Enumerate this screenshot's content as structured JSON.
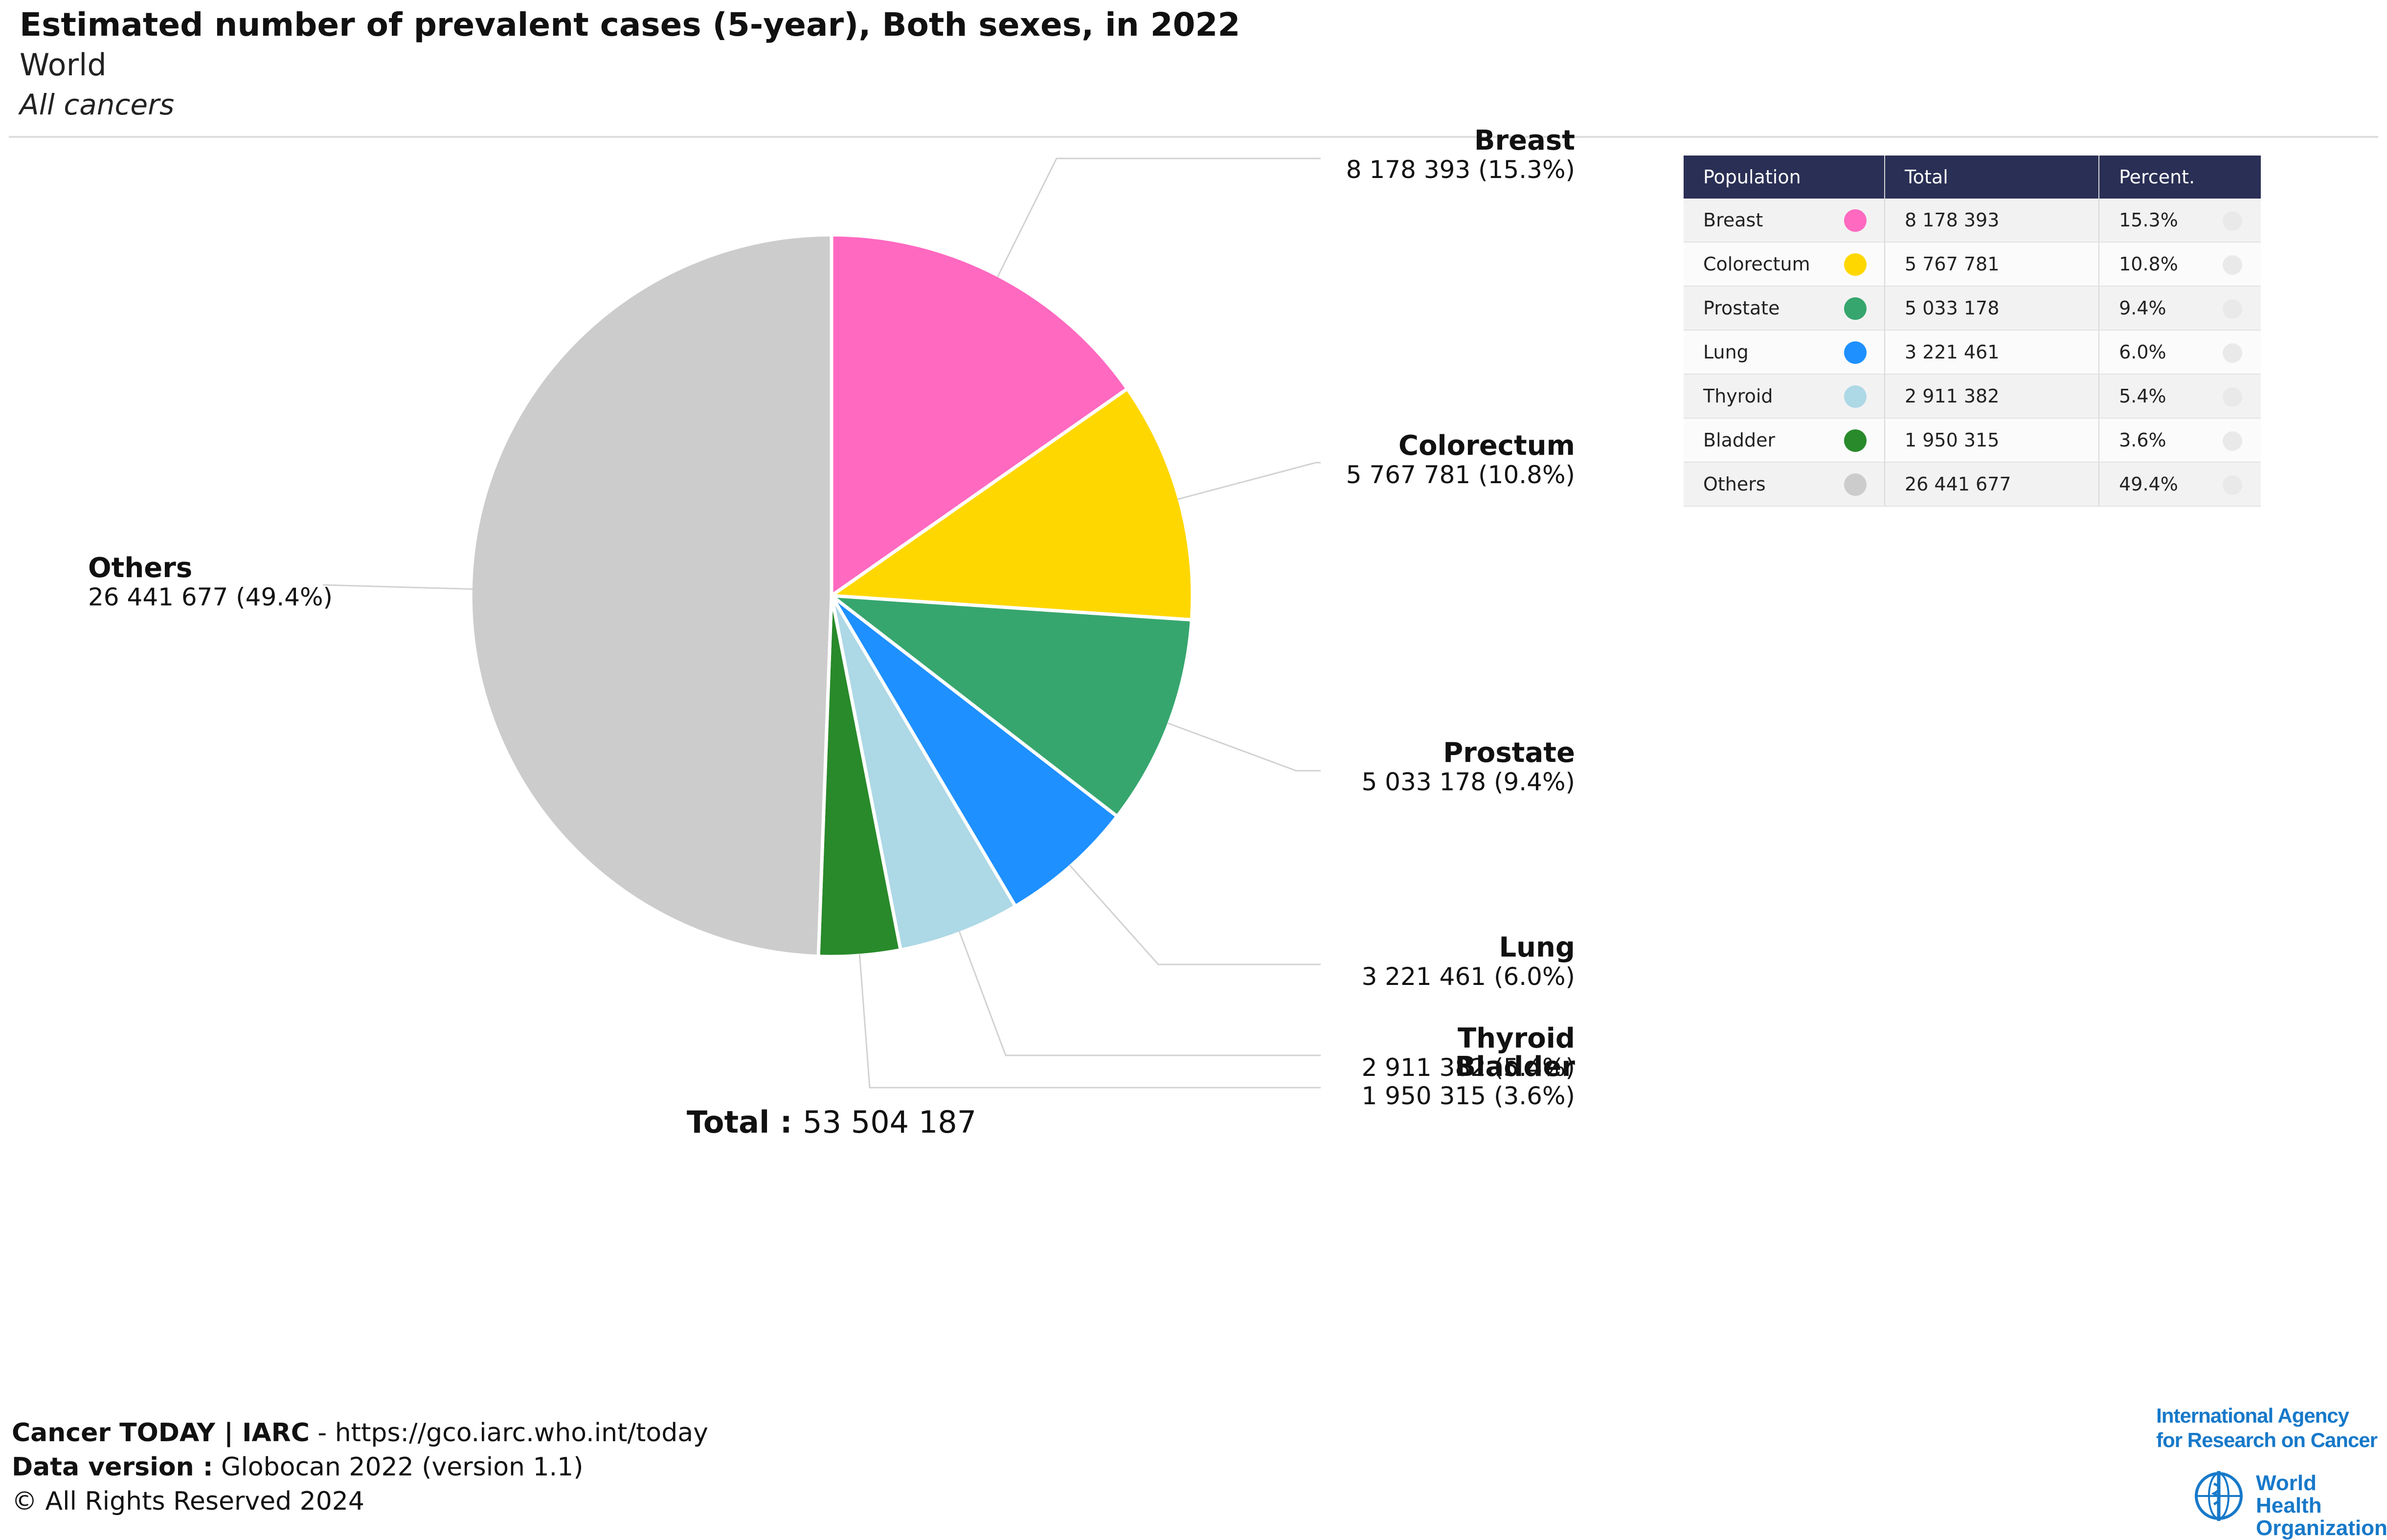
{
  "header": {
    "title": "Estimated number of prevalent cases (5-year), Both sexes, in 2022",
    "subtitle": "World",
    "subsubtitle": "All cancers"
  },
  "chart_data": {
    "type": "pie",
    "title": "Estimated number of prevalent cases (5-year), Both sexes, in 2022",
    "total_label": "Total :",
    "total_value": "53 504 187",
    "slices": [
      {
        "name": "Breast",
        "value": 8178393,
        "value_label": "8 178 393",
        "percent_label": "15.3%",
        "color": "#ff69c0"
      },
      {
        "name": "Colorectum",
        "value": 5767781,
        "value_label": "5 767 781",
        "percent_label": "10.8%",
        "color": "#ffd700"
      },
      {
        "name": "Prostate",
        "value": 5033178,
        "value_label": "5 033 178",
        "percent_label": "9.4%",
        "color": "#36a66e"
      },
      {
        "name": "Lung",
        "value": 3221461,
        "value_label": "3 221 461",
        "percent_label": "6.0%",
        "color": "#1e90ff"
      },
      {
        "name": "Thyroid",
        "value": 2911382,
        "value_label": "2 911 382",
        "percent_label": "5.4%",
        "color": "#add8e6"
      },
      {
        "name": "Bladder",
        "value": 1950315,
        "value_label": "1 950 315",
        "percent_label": "3.6%",
        "color": "#288a2a"
      },
      {
        "name": "Others",
        "value": 26441677,
        "value_label": "26 441 677",
        "percent_label": "49.4%",
        "color": "#cccccc"
      }
    ]
  },
  "table": {
    "headers": [
      "Population",
      "Total",
      "Percent."
    ]
  },
  "footer": {
    "source_bold": "Cancer TODAY | IARC",
    "source_rest": " - https://gco.iarc.who.int/today",
    "version_bold": "Data version :",
    "version_rest": " Globocan 2022 (version 1.1)",
    "rights": "© All Rights Reserved 2024"
  },
  "logos": {
    "iarc_line1": "International Agency",
    "iarc_line2": "for Research on Cancer",
    "who_line1": "World Health",
    "who_line2": "Organization",
    "who_icon": "who-emblem-icon"
  }
}
